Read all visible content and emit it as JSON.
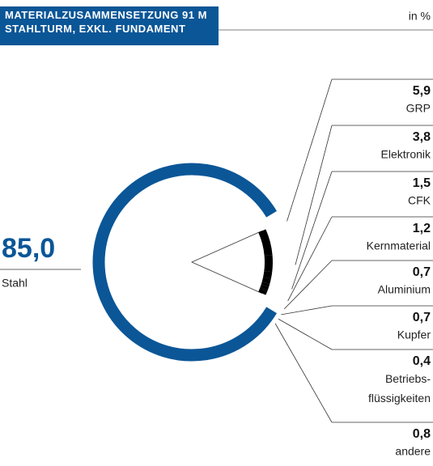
{
  "chart_data": {
    "type": "pie",
    "title": "MATERIALZUSAMMENSETZUNG 91 M\nSTAHLTURM, EXKL. FUNDAMENT",
    "unit": "in %",
    "categories": [
      "Stahl",
      "GRP",
      "Elektronik",
      "CFK",
      "Kernmaterial",
      "Aluminium",
      "Kupfer",
      "Betriebs-\nflüssigkeiten",
      "andere"
    ],
    "values": [
      85.0,
      5.9,
      3.8,
      1.5,
      1.2,
      0.7,
      0.7,
      0.4,
      0.8
    ],
    "value_labels": [
      "85,0",
      "5,9",
      "3,8",
      "1,5",
      "1,2",
      "0,7",
      "0,7",
      "0,4",
      "0,8"
    ],
    "colors": [
      "#0b5697",
      "#000000"
    ]
  }
}
